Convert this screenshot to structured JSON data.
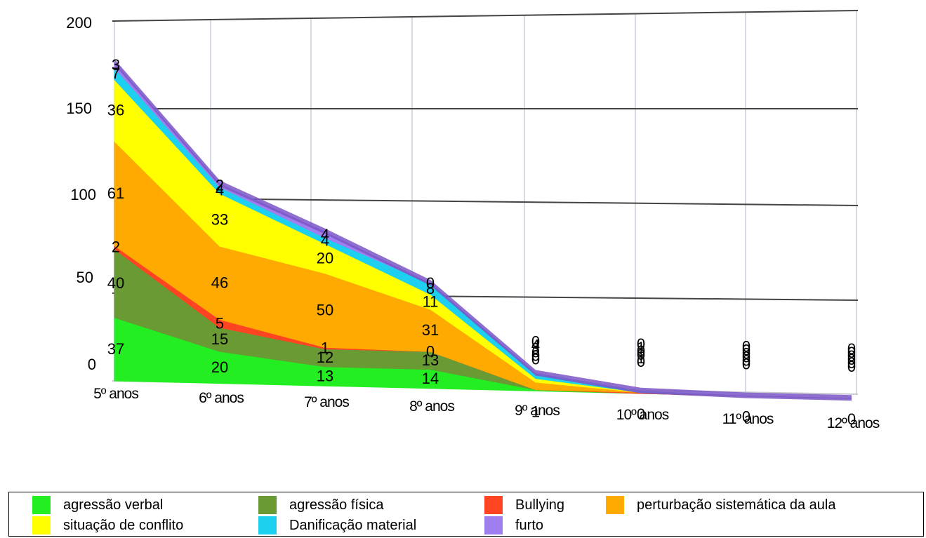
{
  "chart_data": {
    "type": "area",
    "stacked": true,
    "categories": [
      "5º anos",
      "6º anos",
      "7º anos",
      "8º anos",
      "9º anos",
      "10º anos",
      "11º anos",
      "12º anos"
    ],
    "series": [
      {
        "name": "agressão verbal",
        "color": "#22ee22",
        "values": [
          37,
          20,
          13,
          14,
          1,
          0,
          0,
          0
        ]
      },
      {
        "name": "agressão física",
        "color": "#6a9a34",
        "values": [
          40,
          15,
          12,
          13,
          0,
          0,
          0,
          0
        ]
      },
      {
        "name": "Bullying",
        "color": "#ff4422",
        "values": [
          2,
          5,
          1,
          0,
          0,
          1,
          0,
          0
        ]
      },
      {
        "name": "perturbação sistemática da aula",
        "color": "#ffaa00",
        "values": [
          61,
          46,
          50,
          31,
          6,
          0,
          0,
          0
        ]
      },
      {
        "name": "situação de conflito",
        "color": "#ffff00",
        "values": [
          36,
          33,
          20,
          11,
          3,
          0,
          0,
          0
        ]
      },
      {
        "name": "Danificação material",
        "color": "#1ed0f0",
        "values": [
          7,
          4,
          4,
          8,
          4,
          1,
          0,
          0
        ]
      },
      {
        "name": "furto",
        "color": "#9f7ef0",
        "values": [
          3,
          2,
          4,
          0,
          0,
          0,
          0,
          0
        ]
      }
    ],
    "yticks": [
      "0",
      "50",
      "100",
      "150",
      "200"
    ],
    "ylim": [
      0,
      200
    ],
    "grid": true,
    "view": "3d-perspective",
    "legend_position": "bottom"
  }
}
